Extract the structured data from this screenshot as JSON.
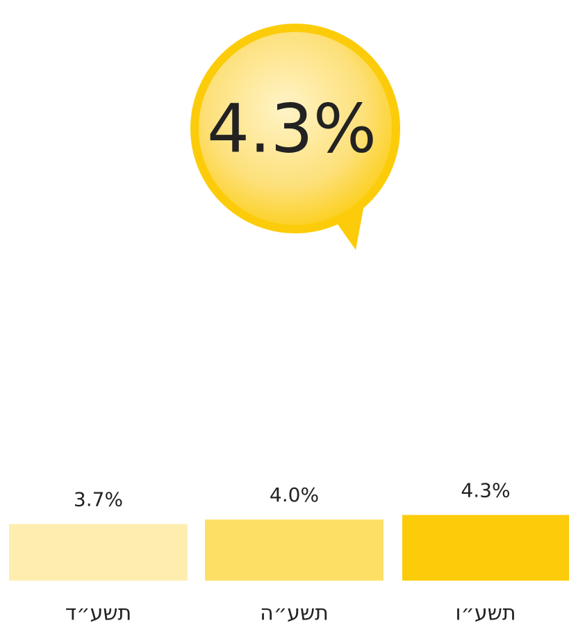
{
  "chart_data": {
    "type": "bar",
    "categories": [
      "תשע״ד",
      "תשע״ה",
      "תשע״ו"
    ],
    "values": [
      3.7,
      4.0,
      4.3
    ],
    "value_labels": [
      "3.7%",
      "4.0%",
      "4.3%"
    ],
    "colors": [
      "#fdeeb0",
      "#fddf66",
      "#fccc0a"
    ]
  }
}
